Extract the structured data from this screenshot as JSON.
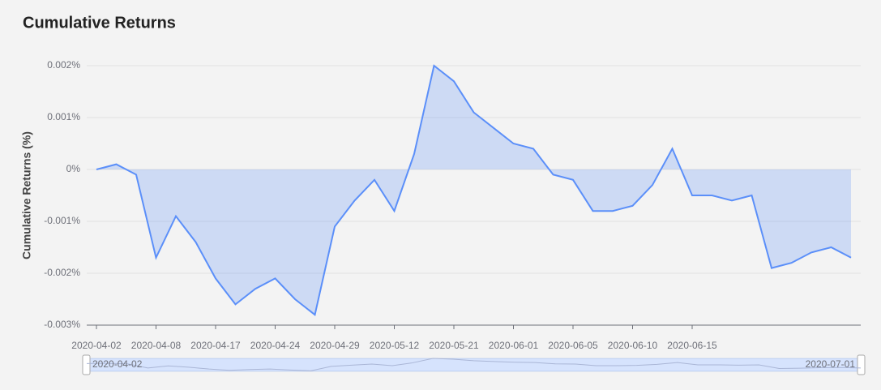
{
  "chart_data": {
    "type": "area",
    "title": "Cumulative Returns",
    "y_label": "Cumulative Returns (%)",
    "categories": [
      "2020-04-02",
      null,
      null,
      "2020-04-08",
      null,
      null,
      "2020-04-17",
      null,
      null,
      "2020-04-24",
      null,
      null,
      "2020-04-29",
      null,
      null,
      "2020-05-12",
      null,
      null,
      "2020-05-21",
      null,
      null,
      "2020-06-01",
      null,
      null,
      "2020-06-05",
      null,
      null,
      "2020-06-10",
      null,
      null,
      "2020-06-15",
      null,
      null,
      null,
      null,
      null,
      null,
      null,
      "2020-07-01"
    ],
    "series": [
      {
        "name": "Cumulative Returns",
        "color": "#5b8ff9",
        "values": [
          0,
          0.0001,
          -0.0001,
          -0.0017,
          -0.0009,
          -0.0014,
          -0.0021,
          -0.0026,
          -0.0023,
          -0.0021,
          -0.0025,
          -0.0028,
          -0.0011,
          -0.0006,
          -0.0002,
          -0.0008,
          0.0003,
          0.002,
          0.0017,
          0.0011,
          0.0008,
          0.0005,
          0.0004,
          -0.0001,
          -0.0002,
          -0.0008,
          -0.0008,
          -0.0007,
          -0.0003,
          0.0004,
          -0.0005,
          -0.0005,
          -0.0006,
          -0.0005,
          -0.0019,
          -0.0018,
          -0.0016,
          -0.0015,
          -0.0017
        ]
      }
    ],
    "ylim": [
      -0.003,
      0.002
    ],
    "yticks": [
      {
        "value": -0.003,
        "label": "-0.003%"
      },
      {
        "value": -0.002,
        "label": "-0.002%"
      },
      {
        "value": -0.001,
        "label": "-0.001%"
      },
      {
        "value": 0,
        "label": "0%"
      },
      {
        "value": 0.001,
        "label": "0.001%"
      },
      {
        "value": 0.002,
        "label": "0.002%"
      }
    ],
    "grid": true
  }
}
